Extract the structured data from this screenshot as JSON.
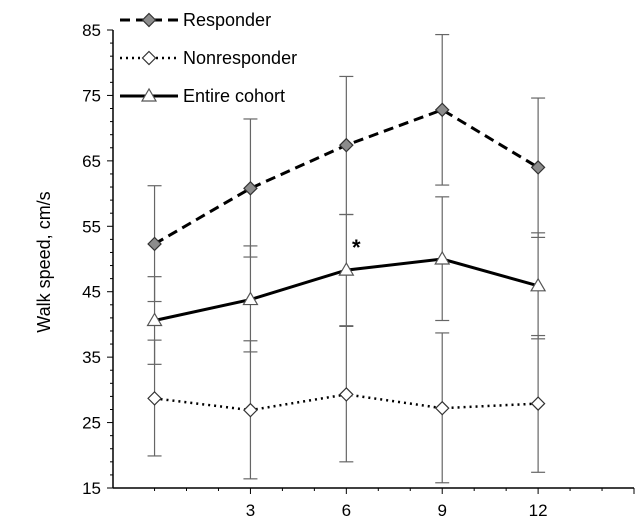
{
  "chart_data": {
    "type": "line",
    "title": "",
    "xlabel": "",
    "ylabel": "Walk speed, cm/s",
    "xlim": [
      -1.3,
      15
    ],
    "ylim": [
      15,
      85
    ],
    "x_ticks": [
      3,
      6,
      9,
      12
    ],
    "y_ticks": [
      15,
      25,
      35,
      45,
      55,
      65,
      75,
      85
    ],
    "x": [
      0,
      3,
      6,
      9,
      12
    ],
    "grid": false,
    "legend_position": "top-left",
    "series": [
      {
        "name": "Responder",
        "line_style": "dashed",
        "marker": "diamond",
        "marker_fill": "#8c8c8c",
        "values": [
          52.3,
          60.8,
          67.4,
          72.8,
          64.0
        ],
        "error_low": [
          43.5,
          50.3,
          56.8,
          61.3,
          53.3
        ],
        "error_high": [
          61.2,
          71.4,
          77.9,
          84.3,
          74.6
        ]
      },
      {
        "name": "Nonresponder",
        "line_style": "dotted",
        "marker": "diamond",
        "marker_fill": "#ffffff",
        "values": [
          28.7,
          26.9,
          29.3,
          27.2,
          27.9
        ],
        "error_low": [
          19.9,
          16.4,
          19.0,
          15.8,
          17.4
        ],
        "error_high": [
          37.6,
          37.5,
          39.7,
          38.7,
          38.3
        ]
      },
      {
        "name": "Entire cohort",
        "line_style": "solid",
        "marker": "triangle",
        "marker_fill": "#ffffff",
        "values": [
          40.6,
          43.8,
          48.3,
          50.0,
          45.9
        ],
        "error_low": [
          33.9,
          35.8,
          39.8,
          40.6,
          37.8
        ],
        "error_high": [
          47.3,
          52.0,
          56.8,
          59.5,
          54.0
        ]
      }
    ],
    "annotations": [
      {
        "text": "*",
        "x": 6,
        "y": 51.5
      }
    ]
  }
}
